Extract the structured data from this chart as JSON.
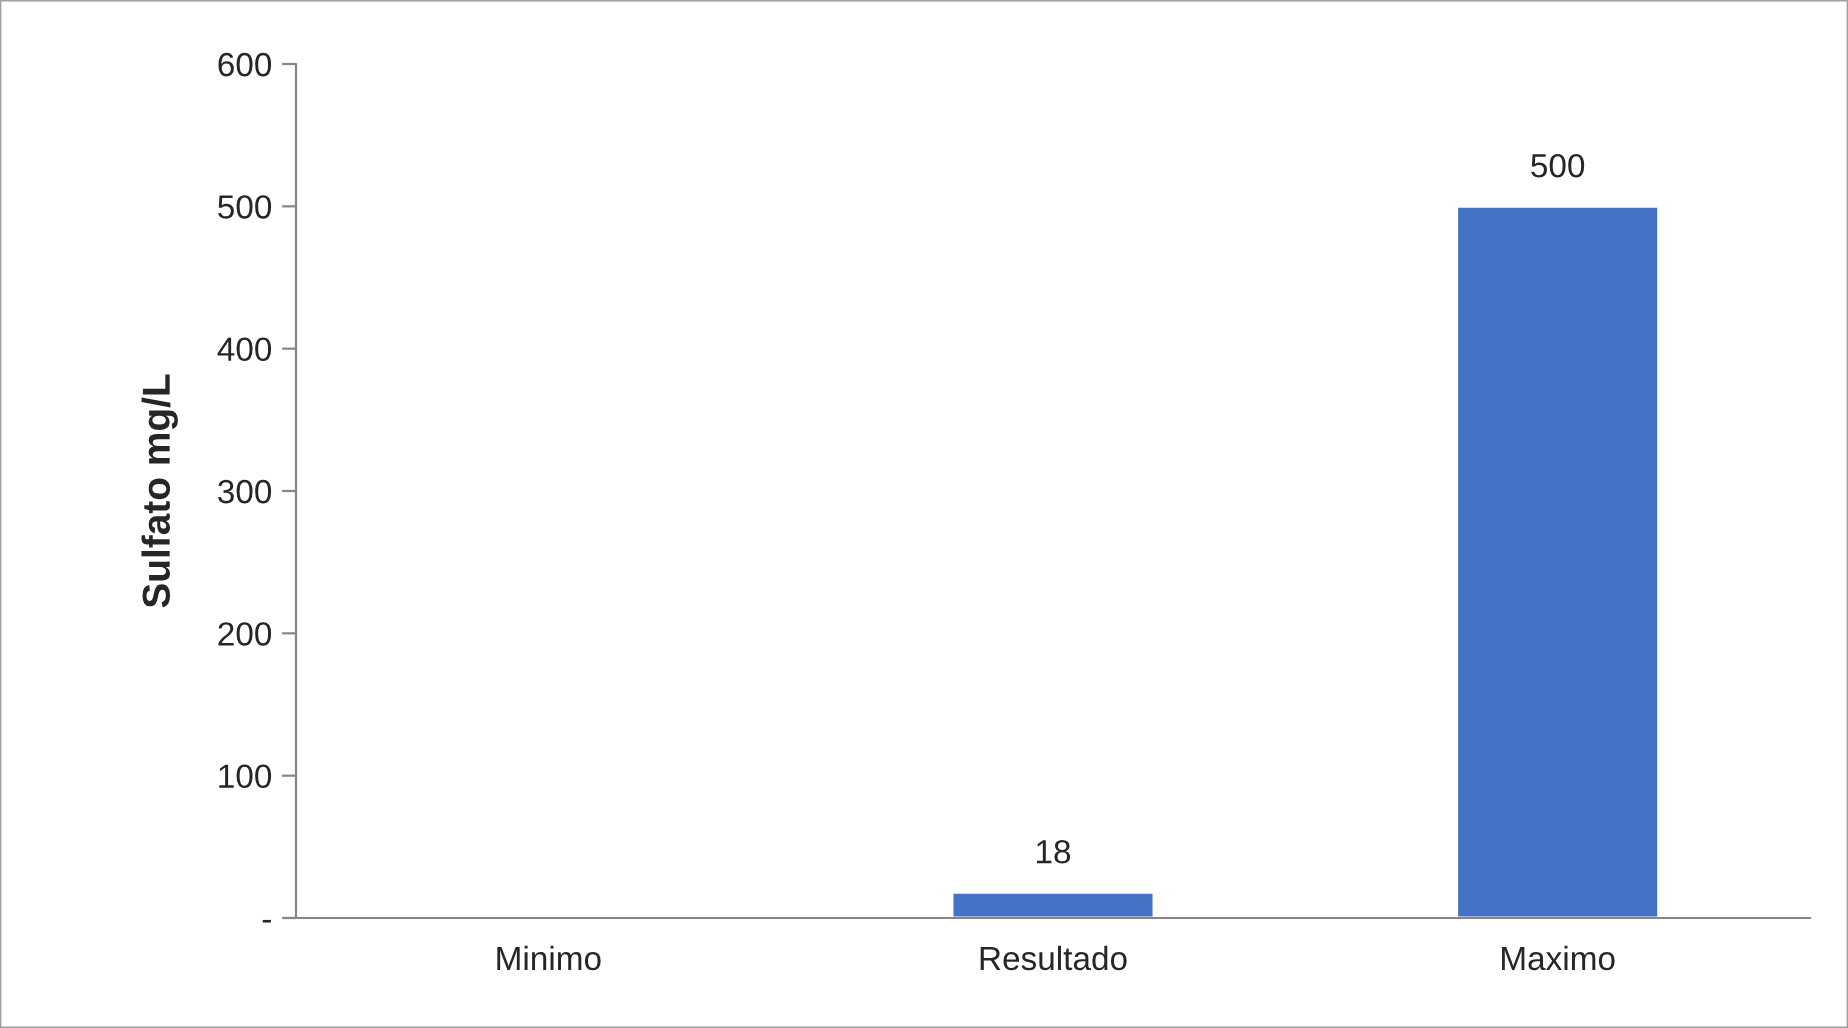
{
  "chart_data": {
    "type": "bar",
    "ylabel": "Sulfato mg/L",
    "categories": [
      "Minimo",
      "Resultado",
      "Maximo"
    ],
    "values": [
      null,
      18,
      500
    ],
    "value_labels": [
      null,
      "18",
      "500"
    ],
    "color": "#4472c4",
    "ylim": [
      0,
      600
    ],
    "yticks": [
      {
        "value": 0,
        "label": "-"
      },
      100,
      200,
      300,
      400,
      500,
      600
    ],
    "grid": false
  }
}
